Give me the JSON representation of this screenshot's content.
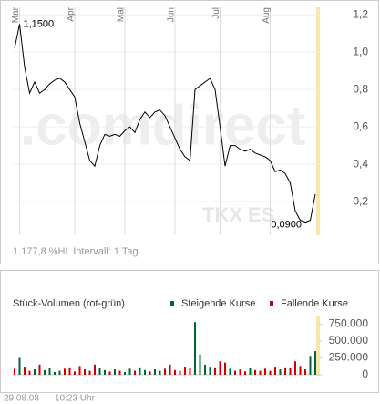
{
  "chart_data": [
    {
      "type": "line",
      "watermark": ".comdirect",
      "symbol": "TKX ES",
      "footer": "1.177,8 %HL Intervall: 1 Tag",
      "annotations": [
        "1,1500",
        "0,0900"
      ],
      "categories": [
        null,
        "Mar",
        null,
        null,
        null,
        null,
        null,
        null,
        null,
        null,
        null,
        null,
        "Apr",
        null,
        null,
        null,
        null,
        null,
        null,
        null,
        null,
        null,
        "Mai",
        null,
        null,
        null,
        null,
        null,
        null,
        null,
        null,
        null,
        "Jun",
        null,
        null,
        null,
        null,
        null,
        null,
        null,
        null,
        "Jul",
        null,
        null,
        null,
        null,
        null,
        null,
        null,
        null,
        null,
        "Aug",
        null,
        null,
        null,
        null,
        null,
        null,
        null,
        null,
        null
      ],
      "series": [
        {
          "color": "#000000",
          "values": [
            1.02,
            1.15,
            0.92,
            0.78,
            0.84,
            0.78,
            0.8,
            0.83,
            0.85,
            0.86,
            0.84,
            0.8,
            0.76,
            0.62,
            0.52,
            0.42,
            0.39,
            0.5,
            0.56,
            0.55,
            0.56,
            0.55,
            0.58,
            0.6,
            0.57,
            0.64,
            0.68,
            0.65,
            0.68,
            0.69,
            0.66,
            0.6,
            0.54,
            0.48,
            0.44,
            0.42,
            0.8,
            0.82,
            0.84,
            0.86,
            0.8,
            0.6,
            0.39,
            0.5,
            0.5,
            0.48,
            0.47,
            0.48,
            0.46,
            0.45,
            0.44,
            0.42,
            0.36,
            0.37,
            0.35,
            0.3,
            0.15,
            0.1,
            0.09,
            0.1,
            0.24
          ]
        }
      ],
      "ylim": [
        0.02,
        1.24
      ],
      "yticks": [
        {
          "value": 0.2,
          "label": "0,2"
        },
        {
          "value": 0.4,
          "label": "0,4"
        },
        {
          "value": 0.6,
          "label": "0,6"
        },
        {
          "value": 0.8,
          "label": "0,8"
        },
        {
          "value": 1.0,
          "label": "1,0"
        },
        {
          "value": 1.2,
          "label": "1,2"
        }
      ],
      "grid": true
    },
    {
      "type": "bar",
      "title": "Stück-Volumen (rot-grün)",
      "date": "29.08.08",
      "time": "10:23 Uhr",
      "series": [
        {
          "name": "Steigende Kurse",
          "color": "#006633",
          "values": [
            null,
            250000,
            null,
            null,
            80000,
            null,
            70000,
            100000,
            40000,
            60000,
            null,
            null,
            null,
            null,
            null,
            null,
            null,
            100000,
            70000,
            null,
            80000,
            null,
            40000,
            90000,
            null,
            110000,
            70000,
            null,
            80000,
            60000,
            null,
            null,
            null,
            null,
            null,
            null,
            780000,
            300000,
            150000,
            120000,
            null,
            null,
            null,
            90000,
            null,
            null,
            null,
            100000,
            null,
            null,
            null,
            null,
            null,
            80000,
            null,
            null,
            null,
            null,
            null,
            280000,
            350000
          ]
        },
        {
          "name": "Fallende Kurse",
          "color": "#cc0000",
          "values": [
            90000,
            null,
            120000,
            60000,
            null,
            150000,
            null,
            null,
            null,
            null,
            90000,
            110000,
            50000,
            130000,
            80000,
            60000,
            150000,
            null,
            null,
            50000,
            null,
            60000,
            null,
            null,
            60000,
            null,
            null,
            50000,
            null,
            null,
            90000,
            150000,
            70000,
            60000,
            120000,
            100000,
            null,
            null,
            null,
            null,
            100000,
            200000,
            180000,
            null,
            60000,
            80000,
            50000,
            null,
            70000,
            60000,
            90000,
            60000,
            120000,
            null,
            110000,
            100000,
            200000,
            130000,
            80000,
            null,
            null
          ]
        }
      ],
      "ylim": [
        0,
        850000
      ],
      "yticks": [
        0,
        {
          "value": 250000,
          "label": "250.000"
        },
        {
          "value": 500000,
          "label": "500.000"
        },
        {
          "value": 750000,
          "label": "750.000"
        }
      ]
    }
  ]
}
